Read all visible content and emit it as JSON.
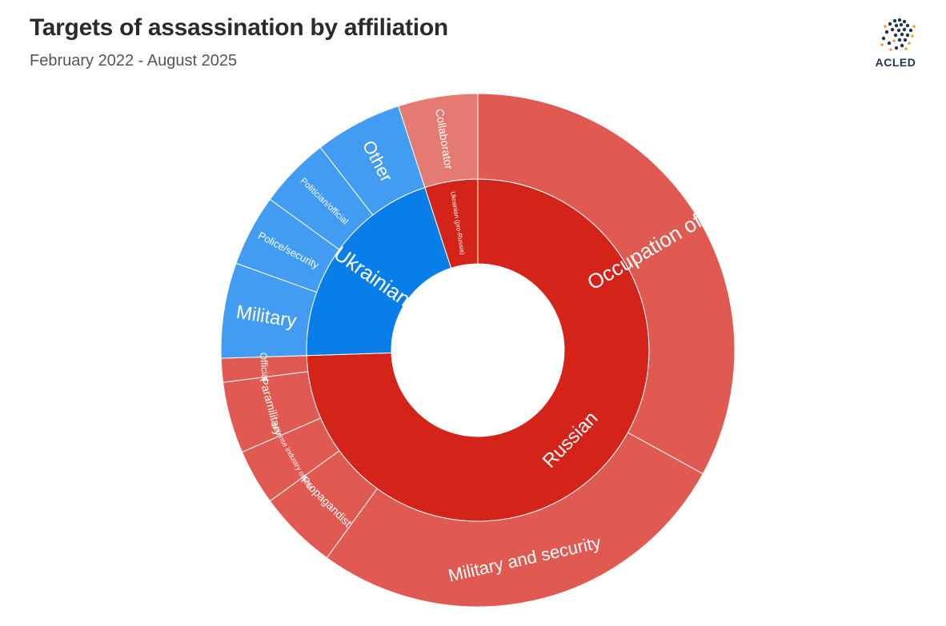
{
  "header": {
    "title": "Targets of assassination by affiliation",
    "subtitle": "February 2022 - August 2025"
  },
  "logo": {
    "text": "ACLED",
    "icon": "globe-dots-icon"
  },
  "colors": {
    "russian": "#d42319",
    "russian_outer": "#e05a52",
    "collaborator": "#e57a72",
    "ukrainian": "#0a7ee8",
    "ukrainian_outer": "#429df2"
  },
  "chart_data": {
    "type": "sunburst",
    "title": "Targets of assassination by affiliation",
    "subtitle": "February 2022 - August 2025",
    "inner": [
      {
        "label": "Russian",
        "value": 74.5
      },
      {
        "label": "Ukrainian",
        "value": 20.5
      },
      {
        "label": "Ukrainian (pro-Russia)",
        "value": 5
      }
    ],
    "outer": [
      {
        "label": "Occupation official",
        "parent": "Russian",
        "value": 33
      },
      {
        "label": "Military and security",
        "parent": "Russian",
        "value": 27
      },
      {
        "label": "Propagandist",
        "parent": "Russian",
        "value": 5
      },
      {
        "label": "Defense industry official",
        "parent": "Russian",
        "value": 3.5
      },
      {
        "label": "Paramilitary",
        "parent": "Russian",
        "value": 4.5
      },
      {
        "label": "Official",
        "parent": "Russian",
        "value": 1.5
      },
      {
        "label": "Military",
        "parent": "Ukrainian",
        "value": 6
      },
      {
        "label": "Police/security",
        "parent": "Ukrainian",
        "value": 4.5
      },
      {
        "label": "Politician/official",
        "parent": "Ukrainian",
        "value": 4.5
      },
      {
        "label": "Other",
        "parent": "Ukrainian",
        "value": 5.5
      },
      {
        "label": "Collaborator",
        "parent": "Ukrainian (pro-Russia)",
        "value": 5
      }
    ]
  }
}
